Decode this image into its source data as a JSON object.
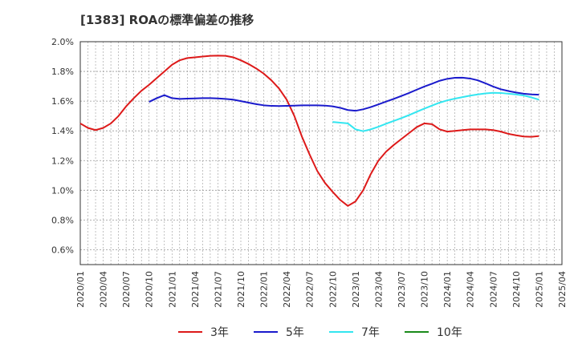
{
  "chart_data": {
    "type": "line",
    "title": "[1383]  ROAの標準偏差の推移",
    "xlabel": "",
    "ylabel": "",
    "ylim": [
      0.5,
      2.0
    ],
    "yticks": [
      "0.6%",
      "0.8%",
      "1.0%",
      "1.2%",
      "1.4%",
      "1.6%",
      "1.8%",
      "2.0%"
    ],
    "x_tick_labels": [
      "2020/01",
      "2020/04",
      "2020/07",
      "2020/10",
      "2021/01",
      "2021/04",
      "2021/07",
      "2021/10",
      "2022/01",
      "2022/04",
      "2022/07",
      "2022/10",
      "2023/01",
      "2023/04",
      "2023/07",
      "2023/10",
      "2024/01",
      "2024/04",
      "2024/07",
      "2024/10",
      "2025/01",
      "2025/04"
    ],
    "grid": true,
    "legend_position": "bottom",
    "series": [
      {
        "name": "3年",
        "color": "#dd1a1a",
        "points": [
          [
            "2020/01",
            1.45
          ],
          [
            "2020/02",
            1.42
          ],
          [
            "2020/03",
            1.405
          ],
          [
            "2020/04",
            1.42
          ],
          [
            "2020/05",
            1.45
          ],
          [
            "2020/06",
            1.5
          ],
          [
            "2020/07",
            1.565
          ],
          [
            "2020/08",
            1.62
          ],
          [
            "2020/09",
            1.67
          ],
          [
            "2020/10",
            1.71
          ],
          [
            "2020/11",
            1.755
          ],
          [
            "2020/12",
            1.8
          ],
          [
            "2021/01",
            1.845
          ],
          [
            "2021/02",
            1.875
          ],
          [
            "2021/03",
            1.89
          ],
          [
            "2021/04",
            1.895
          ],
          [
            "2021/05",
            1.9
          ],
          [
            "2021/06",
            1.905
          ],
          [
            "2021/07",
            1.906
          ],
          [
            "2021/08",
            1.905
          ],
          [
            "2021/09",
            1.895
          ],
          [
            "2021/10",
            1.875
          ],
          [
            "2021/11",
            1.85
          ],
          [
            "2021/12",
            1.82
          ],
          [
            "2022/01",
            1.785
          ],
          [
            "2022/02",
            1.74
          ],
          [
            "2022/03",
            1.685
          ],
          [
            "2022/04",
            1.61
          ],
          [
            "2022/05",
            1.5
          ],
          [
            "2022/06",
            1.36
          ],
          [
            "2022/07",
            1.24
          ],
          [
            "2022/08",
            1.13
          ],
          [
            "2022/09",
            1.05
          ],
          [
            "2022/10",
            0.99
          ],
          [
            "2022/11",
            0.935
          ],
          [
            "2022/12",
            0.895
          ],
          [
            "2023/01",
            0.925
          ],
          [
            "2023/02",
            1.0
          ],
          [
            "2023/03",
            1.11
          ],
          [
            "2023/04",
            1.2
          ],
          [
            "2023/05",
            1.26
          ],
          [
            "2023/06",
            1.305
          ],
          [
            "2023/07",
            1.345
          ],
          [
            "2023/08",
            1.385
          ],
          [
            "2023/09",
            1.425
          ],
          [
            "2023/10",
            1.45
          ],
          [
            "2023/11",
            1.445
          ],
          [
            "2023/12",
            1.41
          ],
          [
            "2024/01",
            1.395
          ],
          [
            "2024/02",
            1.4
          ],
          [
            "2024/03",
            1.405
          ],
          [
            "2024/04",
            1.41
          ],
          [
            "2024/05",
            1.41
          ],
          [
            "2024/06",
            1.41
          ],
          [
            "2024/07",
            1.405
          ],
          [
            "2024/08",
            1.395
          ],
          [
            "2024/09",
            1.38
          ],
          [
            "2024/10",
            1.37
          ],
          [
            "2024/11",
            1.362
          ],
          [
            "2024/12",
            1.36
          ],
          [
            "2025/01",
            1.365
          ]
        ]
      },
      {
        "name": "5年",
        "color": "#1a1acc",
        "points": [
          [
            "2020/10",
            1.595
          ],
          [
            "2020/11",
            1.62
          ],
          [
            "2020/12",
            1.64
          ],
          [
            "2021/01",
            1.62
          ],
          [
            "2021/02",
            1.615
          ],
          [
            "2021/03",
            1.617
          ],
          [
            "2021/04",
            1.618
          ],
          [
            "2021/05",
            1.62
          ],
          [
            "2021/06",
            1.62
          ],
          [
            "2021/07",
            1.618
          ],
          [
            "2021/08",
            1.615
          ],
          [
            "2021/09",
            1.61
          ],
          [
            "2021/10",
            1.6
          ],
          [
            "2021/11",
            1.59
          ],
          [
            "2021/12",
            1.58
          ],
          [
            "2022/01",
            1.572
          ],
          [
            "2022/02",
            1.568
          ],
          [
            "2022/03",
            1.567
          ],
          [
            "2022/04",
            1.568
          ],
          [
            "2022/05",
            1.57
          ],
          [
            "2022/06",
            1.572
          ],
          [
            "2022/07",
            1.572
          ],
          [
            "2022/08",
            1.572
          ],
          [
            "2022/09",
            1.57
          ],
          [
            "2022/10",
            1.565
          ],
          [
            "2022/11",
            1.555
          ],
          [
            "2022/12",
            1.54
          ],
          [
            "2023/01",
            1.535
          ],
          [
            "2023/02",
            1.545
          ],
          [
            "2023/03",
            1.56
          ],
          [
            "2023/04",
            1.578
          ],
          [
            "2023/05",
            1.597
          ],
          [
            "2023/06",
            1.615
          ],
          [
            "2023/07",
            1.635
          ],
          [
            "2023/08",
            1.655
          ],
          [
            "2023/09",
            1.677
          ],
          [
            "2023/10",
            1.698
          ],
          [
            "2023/11",
            1.717
          ],
          [
            "2023/12",
            1.737
          ],
          [
            "2024/01",
            1.75
          ],
          [
            "2024/02",
            1.757
          ],
          [
            "2024/03",
            1.758
          ],
          [
            "2024/04",
            1.752
          ],
          [
            "2024/05",
            1.74
          ],
          [
            "2024/06",
            1.72
          ],
          [
            "2024/07",
            1.698
          ],
          [
            "2024/08",
            1.68
          ],
          [
            "2024/09",
            1.668
          ],
          [
            "2024/10",
            1.658
          ],
          [
            "2024/11",
            1.65
          ],
          [
            "2024/12",
            1.645
          ],
          [
            "2025/01",
            1.643
          ]
        ]
      },
      {
        "name": "7年",
        "color": "#33e6f0",
        "points": [
          [
            "2022/10",
            1.46
          ],
          [
            "2022/11",
            1.455
          ],
          [
            "2022/12",
            1.45
          ],
          [
            "2023/01",
            1.41
          ],
          [
            "2023/02",
            1.398
          ],
          [
            "2023/03",
            1.41
          ],
          [
            "2023/04",
            1.428
          ],
          [
            "2023/05",
            1.448
          ],
          [
            "2023/06",
            1.467
          ],
          [
            "2023/07",
            1.486
          ],
          [
            "2023/08",
            1.506
          ],
          [
            "2023/09",
            1.528
          ],
          [
            "2023/10",
            1.55
          ],
          [
            "2023/11",
            1.57
          ],
          [
            "2023/12",
            1.59
          ],
          [
            "2024/01",
            1.605
          ],
          [
            "2024/02",
            1.617
          ],
          [
            "2024/03",
            1.627
          ],
          [
            "2024/04",
            1.637
          ],
          [
            "2024/05",
            1.645
          ],
          [
            "2024/06",
            1.652
          ],
          [
            "2024/07",
            1.656
          ],
          [
            "2024/08",
            1.655
          ],
          [
            "2024/09",
            1.65
          ],
          [
            "2024/10",
            1.645
          ],
          [
            "2024/11",
            1.638
          ],
          [
            "2024/12",
            1.625
          ],
          [
            "2025/01",
            1.61
          ]
        ]
      },
      {
        "name": "10年",
        "color": "#1a8a1a",
        "points": []
      }
    ]
  }
}
